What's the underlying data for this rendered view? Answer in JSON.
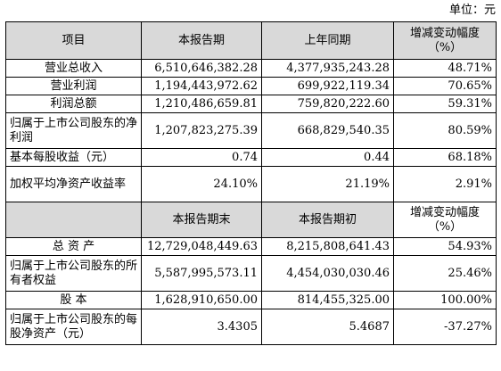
{
  "unit_label": "单位：元",
  "header1": {
    "item": "项目",
    "current": "本报告期",
    "previous": "上年同期",
    "change_line1": "增减变动幅度",
    "change_line2": "（%）"
  },
  "rows1": [
    {
      "label": "营业总收入",
      "current": "6,510,646,382.28",
      "previous": "4,377,935,243.28",
      "change": "48.71%"
    },
    {
      "label": "营业利润",
      "current": "1,194,443,972.62",
      "previous": "699,922,119.34",
      "change": "70.65%"
    },
    {
      "label": "利润总额",
      "current": "1,210,486,659.81",
      "previous": "759,820,222.60",
      "change": "59.31%"
    },
    {
      "label": "归属于上市公司股东的净利润",
      "current": "1,207,823,275.39",
      "previous": "668,829,540.35",
      "change": "80.59%"
    },
    {
      "label": "基本每股收益（元）",
      "current": "0.74",
      "previous": "0.44",
      "change": "68.18%"
    },
    {
      "label": "加权平均净资产收益率",
      "current": "24.10%",
      "previous": "21.19%",
      "change": "2.91%"
    }
  ],
  "header2": {
    "current": "本报告期末",
    "previous": "本报告期初",
    "change_line1": "增减变动幅度",
    "change_line2": "（%）"
  },
  "rows2": [
    {
      "label": "总 资 产",
      "current": "12,729,048,449.63",
      "previous": "8,215,808,641.43",
      "change": "54.93%"
    },
    {
      "label": "归属于上市公司股东的所有者权益",
      "current": "5,587,995,573.11",
      "previous": "4,454,030,030.46",
      "change": "25.46%"
    },
    {
      "label": "股 本",
      "current": "1,628,910,650.00",
      "previous": "814,455,325.00",
      "change": "100.00%"
    },
    {
      "label": "归属于上市公司股东的每股净资产（元）",
      "current": "3.4305",
      "previous": "5.4687",
      "change": "-37.27%"
    }
  ]
}
